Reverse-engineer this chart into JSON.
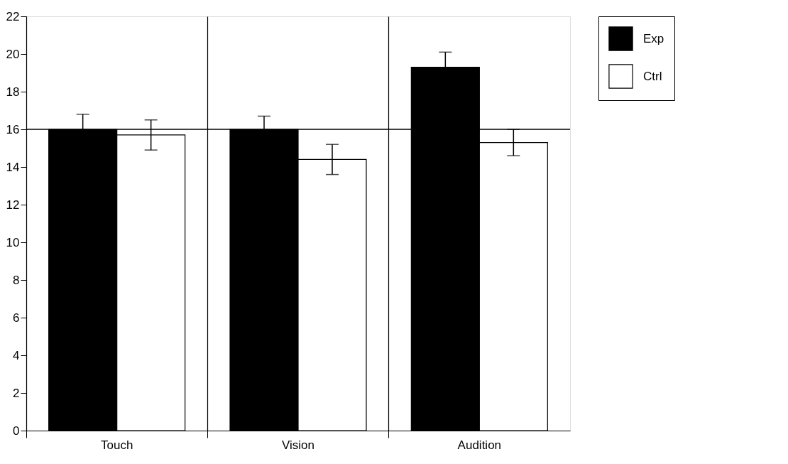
{
  "chart_data": {
    "type": "bar",
    "categories": [
      "Touch",
      "Vision",
      "Audition"
    ],
    "series": [
      {
        "name": "Exp",
        "color": "#000000",
        "values": [
          16.0,
          16.0,
          19.3
        ],
        "errors": [
          0.8,
          0.7,
          0.8
        ]
      },
      {
        "name": "Ctrl",
        "color": "#ffffff",
        "values": [
          15.7,
          14.4,
          15.3
        ],
        "errors": [
          0.8,
          0.8,
          0.7
        ]
      }
    ],
    "ylim": [
      0,
      22
    ],
    "yticks": [
      0,
      2,
      4,
      6,
      8,
      10,
      12,
      14,
      16,
      18,
      20,
      22
    ],
    "grid": "x",
    "legend": "top right",
    "ref_lines": [
      {
        "axis": "y",
        "value": 16,
        "color": "#000000"
      }
    ]
  }
}
